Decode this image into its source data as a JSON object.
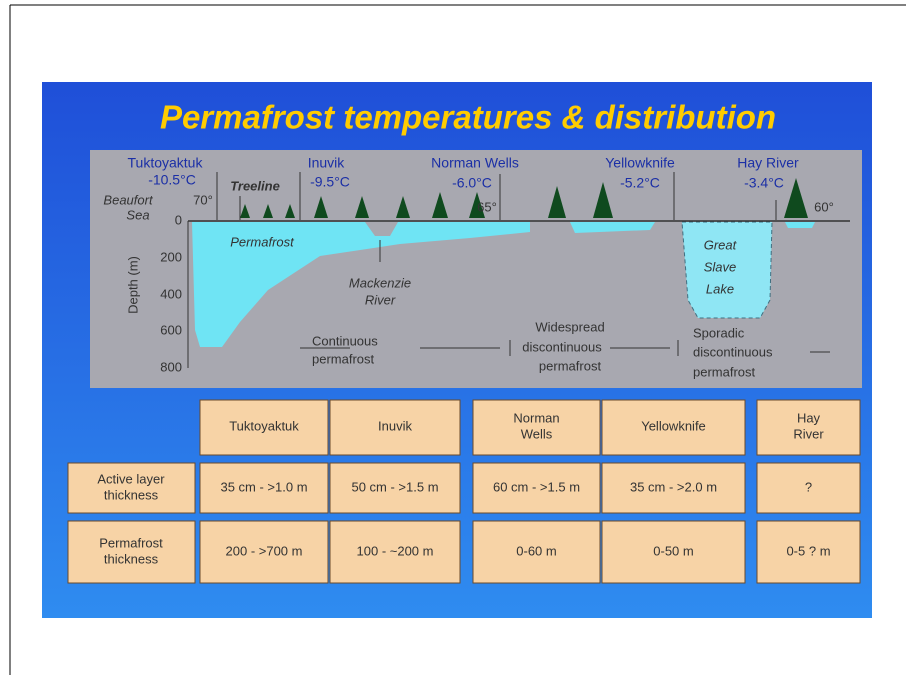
{
  "title": "Permafrost temperatures & distribution",
  "diagram": {
    "stations": [
      {
        "name": "Tuktoyaktuk",
        "temp": "-10.5°C"
      },
      {
        "name": "Inuvik",
        "temp": "-9.5°C"
      },
      {
        "name": "Norman Wells",
        "temp": "-6.0°C"
      },
      {
        "name": "Yellowknife",
        "temp": "-5.2°C"
      },
      {
        "name": "Hay River",
        "temp": "-3.4°C"
      }
    ],
    "treeline": "Treeline",
    "sea": [
      "Beaufort",
      "Sea"
    ],
    "latitudes": [
      "70°",
      "65°",
      "60°"
    ],
    "depth_axis_label": "Depth (m)",
    "depth_ticks": [
      "0",
      "200",
      "400",
      "600",
      "800"
    ],
    "permafrost_label": "Permafrost",
    "river": [
      "Mackenzie",
      "River"
    ],
    "lake": [
      "Great",
      "Slave",
      "Lake"
    ],
    "zones": [
      [
        "Continuous",
        "permafrost"
      ],
      [
        "Widespread",
        "discontinuous",
        "permafrost"
      ],
      [
        "Sporadic",
        "discontinuous",
        "permafrost"
      ]
    ]
  },
  "table": {
    "columns": [
      [
        "Tuktoyaktuk"
      ],
      [
        "Inuvik"
      ],
      [
        "Norman",
        "Wells"
      ],
      [
        "Yellowknife"
      ],
      [
        "Hay",
        "River"
      ]
    ],
    "rows": [
      {
        "label": [
          "Active layer",
          "thickness"
        ],
        "cells": [
          "35 cm - >1.0 m",
          "50 cm - >1.5 m",
          "60 cm - >1.5 m",
          "35 cm - >2.0 m",
          "?"
        ]
      },
      {
        "label": [
          "Permafrost",
          "thickness"
        ],
        "cells": [
          "200 - >700 m",
          "100 - ~200 m",
          "0-60 m",
          "0-50 m",
          "0-5 ? m"
        ]
      }
    ]
  }
}
